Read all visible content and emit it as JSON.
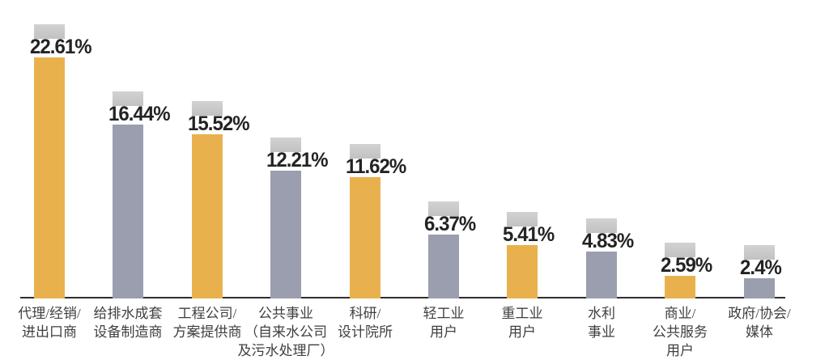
{
  "chart_data": {
    "type": "bar",
    "title": "",
    "xlabel": "",
    "ylabel": "",
    "ylim": [
      0,
      25
    ],
    "grid": false,
    "legend": null,
    "value_suffix": "%",
    "categories": [
      "代理/经销/进出口商",
      "给排水成套设备制造商",
      "工程公司/方案提供商",
      "公共事业（自来水公司及污水处理厂）",
      "科研/设计院所",
      "轻工业用户",
      "重工业用户",
      "水利事业",
      "商业/公共服务用户",
      "政府/协会/媒体"
    ],
    "values": [
      22.61,
      16.44,
      15.52,
      12.21,
      11.62,
      6.37,
      5.41,
      4.83,
      2.59,
      2.4
    ],
    "bars": [
      {
        "category_lines": [
          "代理/经销/",
          "进出口商"
        ],
        "value": 22.61,
        "value_label": "22.61%",
        "color_key": "gold"
      },
      {
        "category_lines": [
          "给排水成套",
          "设备制造商"
        ],
        "value": 16.44,
        "value_label": "16.44%",
        "color_key": "slate"
      },
      {
        "category_lines": [
          "工程公司/",
          "方案提供商"
        ],
        "value": 15.52,
        "value_label": "15.52%",
        "color_key": "gold"
      },
      {
        "category_lines": [
          "公共事业",
          "（自来水公司",
          "及污水处理厂）"
        ],
        "value": 12.21,
        "value_label": "12.21%",
        "color_key": "slate"
      },
      {
        "category_lines": [
          "科研/",
          "设计院所"
        ],
        "value": 11.62,
        "value_label": "11.62%",
        "color_key": "gold"
      },
      {
        "category_lines": [
          "轻工业",
          "用户"
        ],
        "value": 6.37,
        "value_label": "6.37%",
        "color_key": "slate"
      },
      {
        "category_lines": [
          "重工业",
          "用户"
        ],
        "value": 5.41,
        "value_label": "5.41%",
        "color_key": "gold"
      },
      {
        "category_lines": [
          "水利",
          "事业"
        ],
        "value": 4.83,
        "value_label": "4.83%",
        "color_key": "slate"
      },
      {
        "category_lines": [
          "商业/",
          "公共服务",
          "用户"
        ],
        "value": 2.59,
        "value_label": "2.59%",
        "color_key": "gold"
      },
      {
        "category_lines": [
          "政府/协会/",
          "媒体"
        ],
        "value": 2.4,
        "value_label": "2.4%",
        "color_key": "slate"
      }
    ],
    "colors": {
      "gold": "#E9B14E",
      "slate": "#9A9EAF",
      "cap": "#C9C9C9",
      "cap_gradient_top": "#D2D2D2",
      "cap_gradient_bottom": "#C2C2C2",
      "value_text": "#232323",
      "category_text": "#3F3F3F",
      "axis": "#2E2E2E",
      "background": "#FFFFFF"
    }
  }
}
